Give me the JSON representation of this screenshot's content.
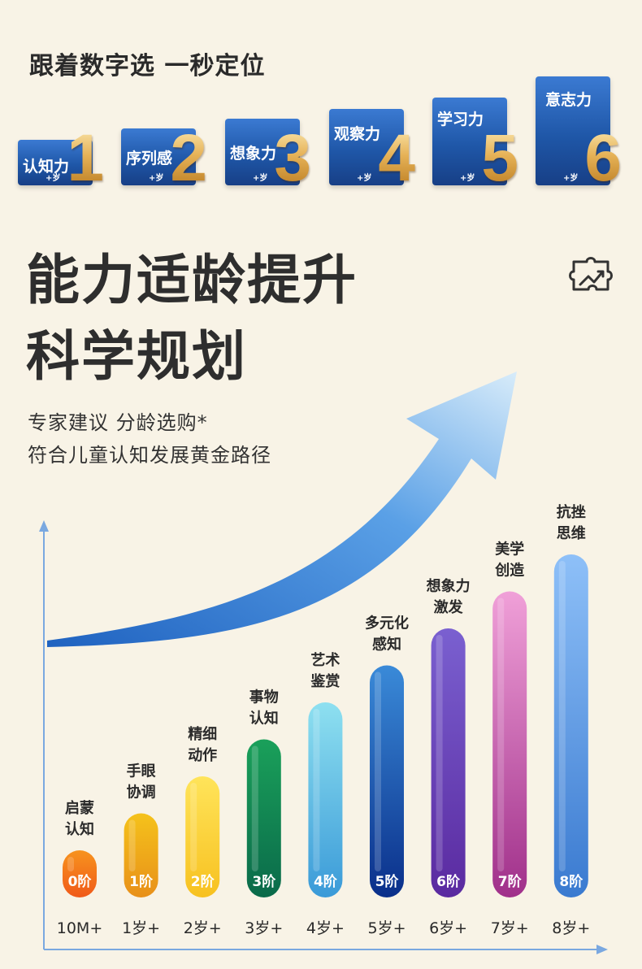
{
  "header": {
    "title": "跟着数字选 一秒定位"
  },
  "ability_cards": [
    {
      "label": "认知力",
      "age": "+岁",
      "number": "1"
    },
    {
      "label": "序列感",
      "age": "+岁",
      "number": "2"
    },
    {
      "label": "想象力",
      "age": "+岁",
      "number": "3"
    },
    {
      "label": "观察力",
      "age": "+岁",
      "number": "4"
    },
    {
      "label": "学习力",
      "age": "+岁",
      "number": "5"
    },
    {
      "label": "意志力",
      "age": "+岁",
      "number": "6"
    }
  ],
  "headline": {
    "line1": "能力适龄提升",
    "line2": "科学规划"
  },
  "subtitle": {
    "line1": "专家建议 分龄选购*",
    "line2": "符合儿童认知发展黄金路径"
  },
  "icons": {
    "puzzle": "puzzle-growth-icon",
    "arrow": "growth-arrow"
  },
  "chart_data": {
    "type": "bar",
    "categories": [
      "10M+",
      "1岁+",
      "2岁+",
      "3岁+",
      "4岁+",
      "5岁+",
      "6岁+",
      "7岁+",
      "8岁+"
    ],
    "stages": [
      "0阶",
      "1阶",
      "2阶",
      "3阶",
      "4阶",
      "5阶",
      "6阶",
      "7阶",
      "8阶"
    ],
    "captions": [
      [
        "启蒙",
        "认知"
      ],
      [
        "手眼",
        "协调"
      ],
      [
        "精细",
        "动作"
      ],
      [
        "事物",
        "认知"
      ],
      [
        "艺术",
        "鉴赏"
      ],
      [
        "多元化",
        "感知"
      ],
      [
        "想象力",
        "激发"
      ],
      [
        "美学",
        "创造"
      ],
      [
        "抗挫",
        "思维"
      ]
    ],
    "values": [
      0,
      1,
      2,
      3,
      4,
      5,
      6,
      7,
      8
    ],
    "colors": [
      [
        "#f7931e",
        "#f05a1a"
      ],
      [
        "#f5c21b",
        "#e8901a"
      ],
      [
        "#ffe45a",
        "#f7c120"
      ],
      [
        "#1aa05a",
        "#0a6a4a"
      ],
      [
        "#8ee0f0",
        "#3a9ad8"
      ],
      [
        "#3a8ad8",
        "#0a2f8a"
      ],
      [
        "#7a60d0",
        "#5a2aa0"
      ],
      [
        "#f0a0d8",
        "#a0308a"
      ],
      [
        "#8ec0f8",
        "#3a7ad0"
      ]
    ],
    "arrow_color": "#4a90d8",
    "axis_color": "#7aa8e0",
    "grid": false
  }
}
